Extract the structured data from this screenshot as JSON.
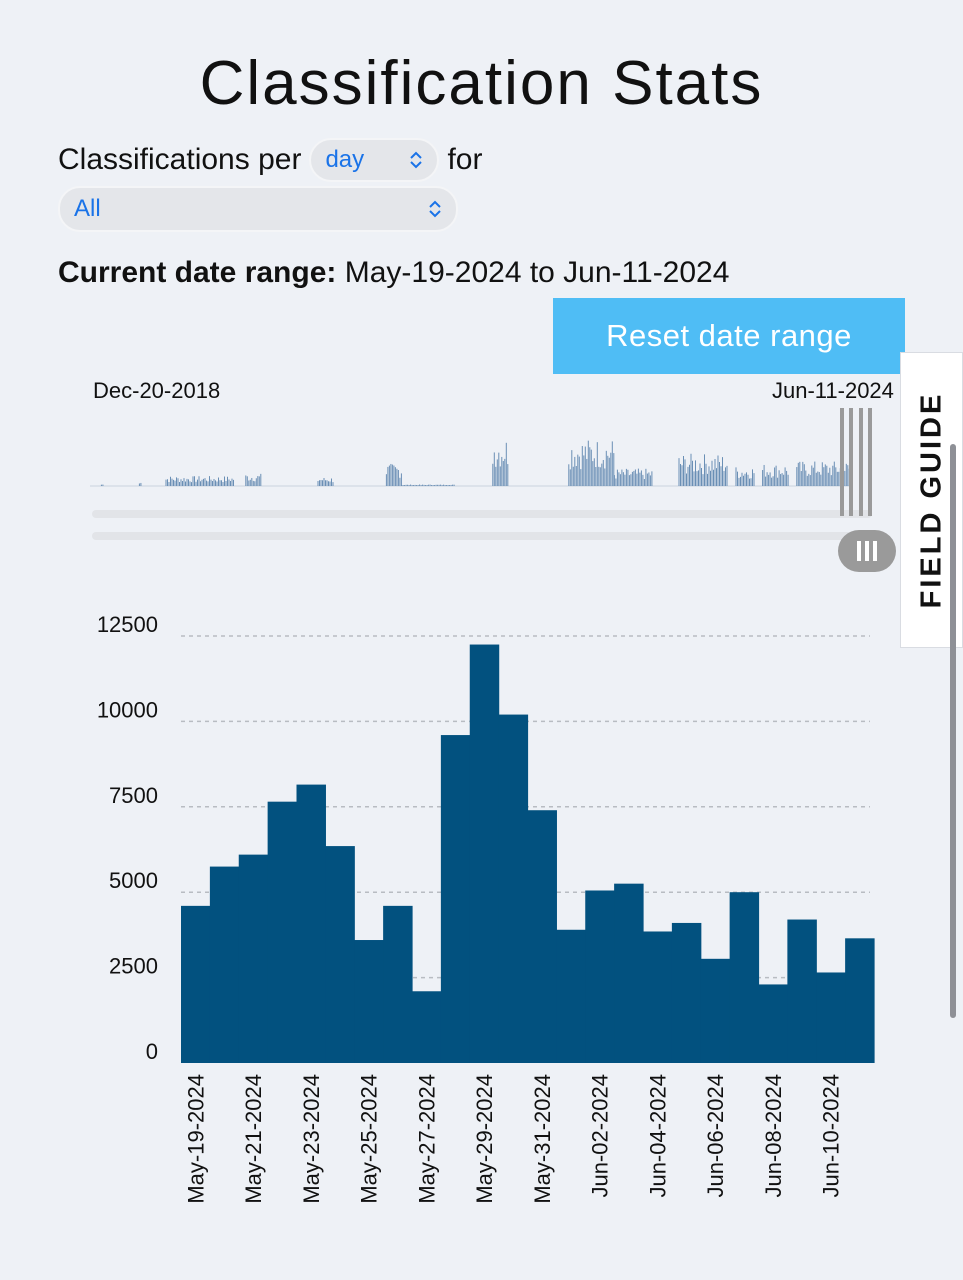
{
  "page": {
    "title": "Classification Stats"
  },
  "controls": {
    "per_label": "Classifications per",
    "per_value": "day",
    "for_label": "for",
    "workflow_value": "All",
    "range_label": "Current date range:",
    "range_value": "May-19-2024 to Jun-11-2024",
    "reset_label": "Reset date range"
  },
  "overview": {
    "start_label": "Dec-20-2018",
    "end_label": "Jun-11-2024",
    "color": "#6a8fb5",
    "activity": [
      {
        "from": 0.015,
        "to": 0.017,
        "level": 0.04
      },
      {
        "from": 0.065,
        "to": 0.067,
        "level": 0.12
      },
      {
        "from": 0.1,
        "to": 0.19,
        "level": 0.2
      },
      {
        "from": 0.205,
        "to": 0.225,
        "level": 0.25
      },
      {
        "from": 0.3,
        "to": 0.32,
        "level": 0.18
      },
      {
        "from": 0.39,
        "to": 0.41,
        "level": 0.45
      },
      {
        "from": 0.41,
        "to": 0.48,
        "level": 0.03
      },
      {
        "from": 0.53,
        "to": 0.55,
        "level": 1.0
      },
      {
        "from": 0.63,
        "to": 0.69,
        "level": 0.95
      },
      {
        "from": 0.69,
        "to": 0.74,
        "level": 0.35
      },
      {
        "from": 0.775,
        "to": 0.84,
        "level": 0.65
      },
      {
        "from": 0.85,
        "to": 0.875,
        "level": 0.4
      },
      {
        "from": 0.885,
        "to": 0.92,
        "level": 0.45
      },
      {
        "from": 0.93,
        "to": 1.0,
        "level": 0.5
      }
    ]
  },
  "field_guide_label": "FIELD GUIDE",
  "colors": {
    "bar": "#02517f",
    "grid": "#b8bcc2",
    "accent": "#4fbdf5"
  },
  "chart_data": {
    "type": "bar",
    "title": "",
    "xlabel": "",
    "ylabel": "",
    "ylim": [
      0,
      12500
    ],
    "yticks": [
      0,
      2500,
      5000,
      7500,
      10000,
      12500
    ],
    "grid": true,
    "categories": [
      "May-19-2024",
      "May-20-2024",
      "May-21-2024",
      "May-22-2024",
      "May-23-2024",
      "May-24-2024",
      "May-25-2024",
      "May-26-2024",
      "May-27-2024",
      "May-28-2024",
      "May-29-2024",
      "May-30-2024",
      "May-31-2024",
      "Jun-01-2024",
      "Jun-02-2024",
      "Jun-03-2024",
      "Jun-04-2024",
      "Jun-05-2024",
      "Jun-06-2024",
      "Jun-07-2024",
      "Jun-08-2024",
      "Jun-09-2024",
      "Jun-10-2024",
      "Jun-11-2024"
    ],
    "values": [
      4600,
      5750,
      6100,
      7650,
      8150,
      6350,
      3600,
      4600,
      2100,
      9600,
      12250,
      10200,
      7400,
      3900,
      5050,
      5250,
      3850,
      4100,
      3050,
      5000,
      2300,
      4200,
      2650,
      3650
    ],
    "visible_tick_labels": [
      "May-19-2024",
      "May-21-2024",
      "May-23-2024",
      "May-25-2024",
      "May-27-2024",
      "May-29-2024",
      "May-31-2024",
      "Jun-02-2024",
      "Jun-04-2024",
      "Jun-06-2024",
      "Jun-08-2024",
      "Jun-10-2024"
    ]
  }
}
